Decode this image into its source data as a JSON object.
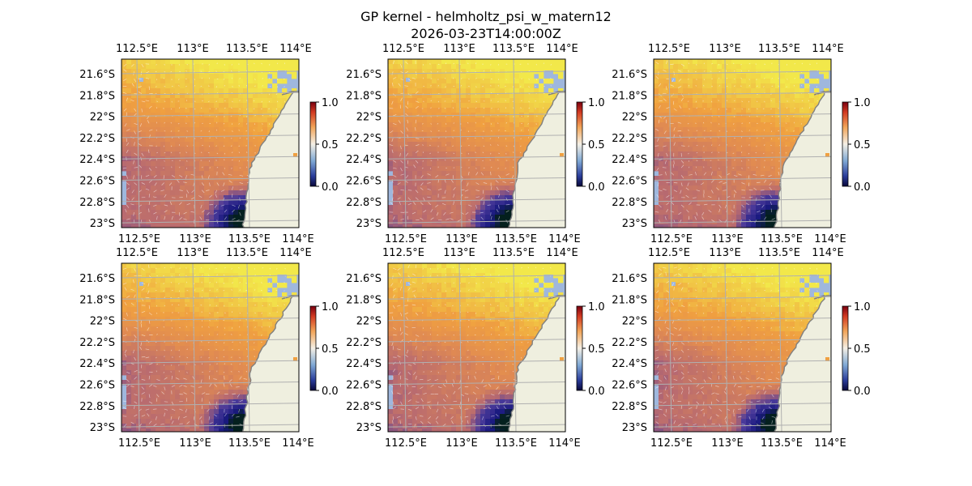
{
  "figure": {
    "title": "GP kernel - helmholtz_psi_w_matern12",
    "subtitle": "2026-03-23T14:00:00Z"
  },
  "colors": {
    "ocean": "#9fb7dd",
    "land": "#efefdf",
    "coast": "#808080",
    "grid": "#b0b0b0",
    "colormap_low": "#2a2a8a",
    "colormap_mid": "#f5f0e6",
    "colormap_high": "#8b0000",
    "overlay_top": "#f2e84a",
    "overlay_mid": "#f0a040",
    "overlay_low": "#b86a70",
    "overlay_deep": "#1a1a80",
    "overlay_abyss": "#04201e"
  },
  "chart_data": [
    {
      "type": "heatmap",
      "panel": 1,
      "x_ticks": [
        "112.5°E",
        "113°E",
        "113.5°E",
        "114°E"
      ],
      "y_ticks": [
        "21.6°S",
        "21.8°S",
        "22°S",
        "22.2°S",
        "22.4°S",
        "22.6°S",
        "22.8°S",
        "23°S"
      ],
      "xlim": [
        112.4,
        114.2
      ],
      "ylim": [
        -23.0,
        -21.46
      ],
      "colorbar": {
        "ticks": [
          "0.0",
          "0.5",
          "1.0"
        ],
        "range": [
          0.0,
          1.0
        ],
        "colormap": "RdYlBu_r"
      },
      "grid": true,
      "quiver_overlay": true
    },
    {
      "type": "heatmap",
      "panel": 2,
      "x_ticks": [
        "112.5°E",
        "113°E",
        "113.5°E",
        "114°E"
      ],
      "y_ticks": [
        "21.6°S",
        "21.8°S",
        "22°S",
        "22.2°S",
        "22.4°S",
        "22.6°S",
        "22.8°S",
        "23°S"
      ],
      "xlim": [
        112.4,
        114.2
      ],
      "ylim": [
        -23.0,
        -21.46
      ],
      "colorbar": {
        "ticks": [
          "0.0",
          "0.5",
          "1.0"
        ],
        "range": [
          0.0,
          1.0
        ],
        "colormap": "RdYlBu_r"
      },
      "grid": true,
      "quiver_overlay": true
    },
    {
      "type": "heatmap",
      "panel": 3,
      "x_ticks": [
        "112.5°E",
        "113°E",
        "113.5°E",
        "114°E"
      ],
      "y_ticks": [
        "21.6°S",
        "21.8°S",
        "22°S",
        "22.2°S",
        "22.4°S",
        "22.6°S",
        "22.8°S",
        "23°S"
      ],
      "xlim": [
        112.4,
        114.2
      ],
      "ylim": [
        -23.0,
        -21.46
      ],
      "colorbar": {
        "ticks": [
          "0.0",
          "0.5",
          "1.0"
        ],
        "range": [
          0.0,
          1.0
        ],
        "colormap": "RdYlBu_r"
      },
      "grid": true,
      "quiver_overlay": true
    },
    {
      "type": "heatmap",
      "panel": 4,
      "x_ticks": [
        "112.5°E",
        "113°E",
        "113.5°E",
        "114°E"
      ],
      "y_ticks": [
        "21.6°S",
        "21.8°S",
        "22°S",
        "22.2°S",
        "22.4°S",
        "22.6°S",
        "22.8°S",
        "23°S"
      ],
      "xlim": [
        112.4,
        114.2
      ],
      "ylim": [
        -23.0,
        -21.46
      ],
      "colorbar": {
        "ticks": [
          "0.0",
          "0.5",
          "1.0"
        ],
        "range": [
          0.0,
          1.0
        ],
        "colormap": "RdYlBu_r"
      },
      "grid": true,
      "quiver_overlay": true
    },
    {
      "type": "heatmap",
      "panel": 5,
      "x_ticks": [
        "112.5°E",
        "113°E",
        "113.5°E",
        "114°E"
      ],
      "y_ticks": [
        "21.6°S",
        "21.8°S",
        "22°S",
        "22.2°S",
        "22.4°S",
        "22.6°S",
        "22.8°S",
        "23°S"
      ],
      "xlim": [
        112.4,
        114.2
      ],
      "ylim": [
        -23.0,
        -21.46
      ],
      "colorbar": {
        "ticks": [
          "0.0",
          "0.5",
          "1.0"
        ],
        "range": [
          0.0,
          1.0
        ],
        "colormap": "RdYlBu_r"
      },
      "grid": true,
      "quiver_overlay": true
    },
    {
      "type": "heatmap",
      "panel": 6,
      "x_ticks": [
        "112.5°E",
        "113°E",
        "113.5°E",
        "114°E"
      ],
      "y_ticks": [
        "21.6°S",
        "21.8°S",
        "22°S",
        "22.2°S",
        "22.4°S",
        "22.6°S",
        "22.8°S",
        "23°S"
      ],
      "xlim": [
        112.4,
        114.2
      ],
      "ylim": [
        -23.0,
        -21.46
      ],
      "colorbar": {
        "ticks": [
          "0.0",
          "0.5",
          "1.0"
        ],
        "range": [
          0.0,
          1.0
        ],
        "colormap": "RdYlBu_r"
      },
      "grid": true,
      "quiver_overlay": true
    }
  ]
}
